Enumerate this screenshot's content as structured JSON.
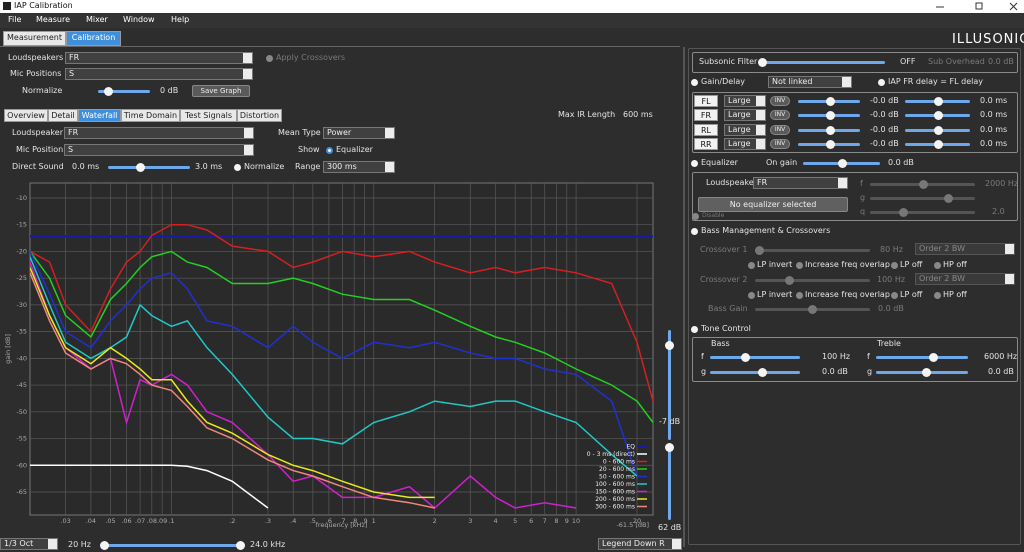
{
  "window": {
    "title": "IAP Calibration"
  },
  "menu": [
    "File",
    "Measure",
    "Mixer",
    "Window",
    "Help"
  ],
  "tabs": [
    "Measurement",
    "Calibration"
  ],
  "logo": "ILLUSONIC",
  "top": {
    "loudspeakers_label": "Loudspeakers",
    "loudspeakers": "FR",
    "apply_crossovers": "Apply Crossovers",
    "mic_positions_label": "Mic Positions",
    "mic_positions": "S",
    "normalize_label": "Normalize",
    "normalize_value": "0 dB",
    "save_graph": "Save Graph"
  },
  "view_tabs": [
    "Overview",
    "Detail",
    "Waterfall",
    "Time Domain",
    "Test Signals",
    "Distortion"
  ],
  "max_ir": {
    "label": "Max IR Length",
    "value": "600 ms"
  },
  "waterfall": {
    "loudspeaker_label": "Loudspeaker",
    "loudspeaker": "FR",
    "mean_type_label": "Mean Type",
    "mean_type": "Power",
    "mic_position_label": "Mic Position",
    "mic_position": "S",
    "show_label": "Show",
    "equalizer": "Equalizer",
    "direct_sound_label": "Direct Sound",
    "direct_from": "0.0 ms",
    "direct_to": "3.0 ms",
    "normalize": "Normalize",
    "range_label": "Range",
    "range": "300 ms"
  },
  "chart_data": {
    "type": "line",
    "xlabel": "frequency [kHz]",
    "ylabel": "gain [dB]",
    "scale_note": "-61.5 [dB]",
    "log_x": true,
    "grid": true,
    "legend": "lower right",
    "xlim": [
      0.02,
      24
    ],
    "ylim": [
      -69.3,
      -7.2
    ],
    "xticks": [
      {
        "value": 0.03,
        "label": ".03"
      },
      {
        "value": 0.04,
        "label": ".04"
      },
      {
        "value": 0.05,
        "label": ".05"
      },
      {
        "value": 0.06,
        "label": ".06"
      },
      {
        "value": 0.07,
        "label": ".07"
      },
      {
        "value": 0.08,
        "label": ".08"
      },
      {
        "value": 0.09,
        "label": ".09"
      },
      {
        "value": 0.1,
        "label": ".1"
      },
      {
        "value": 0.2,
        "label": ".2"
      },
      {
        "value": 0.3,
        "label": ".3"
      },
      {
        "value": 0.4,
        "label": ".4"
      },
      {
        "value": 0.5,
        "label": ".5"
      },
      {
        "value": 0.6,
        "label": ".6"
      },
      {
        "value": 0.7,
        "label": ".7"
      },
      {
        "value": 0.8,
        "label": ".8"
      },
      {
        "value": 0.9,
        "label": ".9"
      },
      1,
      2,
      3,
      4,
      5,
      6,
      7,
      8,
      9,
      10,
      20
    ],
    "yticks": [
      -10,
      -15,
      -20,
      -25,
      -30,
      -35,
      -40,
      -45,
      -50,
      -55,
      -60,
      -65
    ],
    "x": [
      0.02,
      0.025,
      0.03,
      0.04,
      0.05,
      0.06,
      0.07,
      0.08,
      0.1,
      0.12,
      0.15,
      0.2,
      0.3,
      0.4,
      0.5,
      0.7,
      1,
      1.5,
      2,
      3,
      4,
      5,
      7,
      10,
      15,
      20,
      24
    ],
    "series": [
      {
        "name": "EQ",
        "color": "#1a1aa8",
        "values": [
          -17.2,
          -17.2,
          -17.2,
          -17.2,
          -17.2,
          -17.2,
          -17.2,
          -17.2,
          -17.2,
          -17.2,
          -17.2,
          -17.2,
          -17.2,
          -17.2,
          -17.2,
          -17.2,
          -17.2,
          -17.2,
          -17.2,
          -17.2,
          -17.2,
          -17.2,
          -17.2,
          -17.2,
          -17.2,
          -17.2,
          -17.2
        ]
      },
      {
        "name": "0 - 3 ms (direct)",
        "color": "#ffffff",
        "values": [
          -60,
          -60,
          -60,
          -60,
          -60,
          -60,
          -60,
          -60,
          -60,
          -60.2,
          -61,
          -63,
          -68,
          null,
          null,
          null,
          null,
          null,
          null,
          null,
          null,
          null,
          null,
          null,
          null,
          null,
          null
        ]
      },
      {
        "name": "0 - 600 ms",
        "color": "#d42020",
        "values": [
          -20,
          -22,
          -30,
          -35,
          -27,
          -22,
          -20,
          -17,
          -15,
          -15,
          -16,
          -19,
          -20,
          -23,
          -22,
          -20,
          -21,
          -20,
          -22,
          -24,
          -23,
          -24,
          -23,
          -24,
          -26,
          -37,
          -48
        ]
      },
      {
        "name": "20 - 600 ms",
        "color": "#22d022",
        "values": [
          -20,
          -25,
          -32,
          -36,
          -29,
          -26,
          -23,
          -21,
          -20,
          -22,
          -23,
          -26,
          -26,
          -25,
          -26,
          -28,
          -29,
          -29,
          -31,
          -34,
          -36,
          -37,
          -39,
          -42,
          -45,
          -48,
          -52
        ]
      },
      {
        "name": "50 - 600 ms",
        "color": "#2030d0",
        "values": [
          -20,
          -28,
          -35,
          -38,
          -33,
          -30,
          -27,
          -25,
          -24,
          -27,
          -33,
          -34,
          -38,
          -34,
          -37,
          -40,
          -37,
          -38,
          -37,
          -39,
          -40,
          -40,
          -42,
          -43,
          -48,
          -62,
          null
        ]
      },
      {
        "name": "100 - 600 ms",
        "color": "#20c8c8",
        "values": [
          -21,
          -30,
          -37,
          -40,
          -38,
          -36,
          -30,
          -32,
          -34,
          -33,
          -38,
          -43,
          -51,
          -55,
          -55,
          -56,
          -52,
          -50,
          -48,
          -49,
          -48,
          -48,
          -50,
          -52,
          -58,
          -62,
          null
        ]
      },
      {
        "name": "150 - 600 ms",
        "color": "#d020d0",
        "values": [
          -22,
          -32,
          -38,
          -42,
          -40,
          -52,
          -44,
          -45,
          -43,
          -45,
          -50,
          -52,
          -58,
          -63,
          -62,
          -66,
          -66,
          -64,
          -68,
          -62,
          -66,
          -68,
          -67,
          -68,
          null,
          null,
          null
        ]
      },
      {
        "name": "200 - 600 ms",
        "color": "#e8e820",
        "values": [
          -23,
          -32,
          -38,
          -41,
          -38,
          -40,
          -42,
          -44,
          -44,
          -48,
          -52,
          -54,
          -58,
          -60,
          -61,
          -63,
          -65,
          -66,
          -66,
          null,
          null,
          null,
          null,
          null,
          null,
          null,
          null
        ]
      },
      {
        "name": "300 - 600 ms",
        "color": "#f08878",
        "values": [
          -24,
          -33,
          -39,
          -42,
          -40,
          -41,
          -43,
          -45,
          -46,
          -49,
          -53,
          -55,
          -59,
          -61,
          -62,
          -64,
          -66,
          -67,
          -68,
          null,
          null,
          null,
          null,
          null,
          null,
          null,
          null
        ]
      }
    ]
  },
  "chart_controls": {
    "smoothing": "1/3 Oct",
    "f_min": "20 Hz",
    "f_max": "24.0 kHz",
    "legend": "Legend Down R",
    "level_top": "-7 dB",
    "level_range": "62 dB"
  },
  "right": {
    "subsonic_label": "Subsonic Filter",
    "subsonic_value": "OFF",
    "sub_overhead_label": "Sub Overhead",
    "sub_overhead_value": "0.0 dB",
    "gain_delay_label": "Gain/Delay",
    "link": "Not linked",
    "delay_link": "IAP FR delay = FL delay",
    "channels": [
      {
        "name": "FL",
        "size": "Large",
        "inv": "INV",
        "gain": "-0.0 dB",
        "delay": "0.0 ms"
      },
      {
        "name": "FR",
        "size": "Large",
        "inv": "INV",
        "gain": "-0.0 dB",
        "delay": "0.0 ms"
      },
      {
        "name": "RL",
        "size": "Large",
        "inv": "INV",
        "gain": "-0.0 dB",
        "delay": "0.0 ms"
      },
      {
        "name": "RR",
        "size": "Large",
        "inv": "INV",
        "gain": "-0.0 dB",
        "delay": "0.0 ms"
      }
    ],
    "equalizer_label": "Equalizer",
    "on_gain_label": "On gain",
    "on_gain_value": "0.0 dB",
    "eq_loudspeaker_label": "Loudspeaker",
    "eq_loudspeaker": "FR",
    "no_eq": "No equalizer selected",
    "disable": "Disable",
    "eq_f": "f",
    "eq_f_value": "2000 Hz",
    "eq_g": "g",
    "eq_q": "q",
    "eq_q_value": "2.0",
    "bass_label": "Bass Management & Crossovers",
    "crossover1": "Crossover 1",
    "crossover1_value": "80 Hz",
    "order1": "Order 2 BW",
    "crossover2": "Crossover 2",
    "crossover2_value": "100 Hz",
    "order2": "Order 2 BW",
    "options1": [
      "LP invert",
      "Increase freq overlap",
      "LP off",
      "HP off"
    ],
    "options2": [
      "LP invert",
      "Increase freq overlap",
      "LP off",
      "HP off"
    ],
    "bass_gain_label": "Bass Gain",
    "bass_gain_value": "0.0 dB",
    "tone_label": "Tone Control",
    "bass": "Bass",
    "treble": "Treble",
    "bass_f": "f",
    "bass_f_value": "100 Hz",
    "bass_g": "g",
    "bass_g_value": "0.0 dB",
    "treble_f": "f",
    "treble_f_value": "6000 Hz",
    "treble_g": "g",
    "treble_g_value": "0.0 dB"
  }
}
